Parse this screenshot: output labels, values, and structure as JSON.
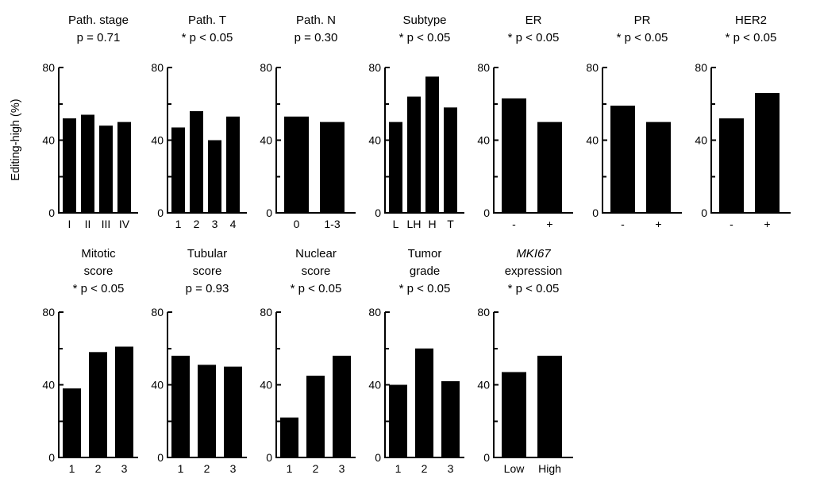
{
  "figure": {
    "ylabel": "Editing-high (%)",
    "background": "#ffffff",
    "bar_color": "#000000",
    "axis_color": "#000000",
    "text_color": "#000000",
    "ylim": [
      0,
      80
    ],
    "yticks_labeled": [
      0,
      40,
      80
    ],
    "yticks_minor": [
      20,
      60
    ]
  },
  "chart_data": [
    {
      "type": "bar",
      "name": "path-stage",
      "row": 1,
      "title_lines": [
        {
          "text": "Path. stage",
          "italic": false
        }
      ],
      "p_label": "p = 0.71",
      "categories": [
        "I",
        "II",
        "III",
        "IV"
      ],
      "values": [
        52,
        54,
        48,
        50
      ],
      "ylabel": "Editing-high (%)",
      "ylim": [
        0,
        80
      ]
    },
    {
      "type": "bar",
      "name": "path-t",
      "row": 1,
      "title_lines": [
        {
          "text": "Path. T",
          "italic": false
        }
      ],
      "p_label": "* p < 0.05",
      "categories": [
        "1",
        "2",
        "3",
        "4"
      ],
      "values": [
        47,
        56,
        40,
        53
      ],
      "ylabel": "Editing-high (%)",
      "ylim": [
        0,
        80
      ]
    },
    {
      "type": "bar",
      "name": "path-n",
      "row": 1,
      "title_lines": [
        {
          "text": "Path. N",
          "italic": false
        }
      ],
      "p_label": "p = 0.30",
      "categories": [
        "0",
        "1-3"
      ],
      "values": [
        53,
        50
      ],
      "ylabel": "Editing-high (%)",
      "ylim": [
        0,
        80
      ]
    },
    {
      "type": "bar",
      "name": "subtype",
      "row": 1,
      "title_lines": [
        {
          "text": "Subtype",
          "italic": false
        }
      ],
      "p_label": "* p < 0.05",
      "categories": [
        "L",
        "LH",
        "H",
        "T"
      ],
      "values": [
        50,
        64,
        75,
        58
      ],
      "ylabel": "Editing-high (%)",
      "ylim": [
        0,
        80
      ]
    },
    {
      "type": "bar",
      "name": "er",
      "row": 1,
      "title_lines": [
        {
          "text": "ER",
          "italic": false
        }
      ],
      "p_label": "* p < 0.05",
      "categories": [
        "-",
        "+"
      ],
      "values": [
        63,
        50
      ],
      "ylabel": "Editing-high (%)",
      "ylim": [
        0,
        80
      ]
    },
    {
      "type": "bar",
      "name": "pr",
      "row": 1,
      "title_lines": [
        {
          "text": "PR",
          "italic": false
        }
      ],
      "p_label": "* p < 0.05",
      "categories": [
        "-",
        "+"
      ],
      "values": [
        59,
        50
      ],
      "ylabel": "Editing-high (%)",
      "ylim": [
        0,
        80
      ]
    },
    {
      "type": "bar",
      "name": "her2",
      "row": 1,
      "title_lines": [
        {
          "text": "HER2",
          "italic": false
        }
      ],
      "p_label": "* p < 0.05",
      "categories": [
        "-",
        "+"
      ],
      "values": [
        52,
        66
      ],
      "ylabel": "Editing-high (%)",
      "ylim": [
        0,
        80
      ]
    },
    {
      "type": "bar",
      "name": "mitotic-score",
      "row": 2,
      "title_lines": [
        {
          "text": "Mitotic",
          "italic": false
        },
        {
          "text": "score",
          "italic": false
        }
      ],
      "p_label": "* p < 0.05",
      "categories": [
        "1",
        "2",
        "3"
      ],
      "values": [
        38,
        58,
        61
      ],
      "ylabel": "Editing-high (%)",
      "ylim": [
        0,
        80
      ]
    },
    {
      "type": "bar",
      "name": "tubular-score",
      "row": 2,
      "title_lines": [
        {
          "text": "Tubular",
          "italic": false
        },
        {
          "text": "score",
          "italic": false
        }
      ],
      "p_label": "p = 0.93",
      "categories": [
        "1",
        "2",
        "3"
      ],
      "values": [
        56,
        51,
        50
      ],
      "ylabel": "Editing-high (%)",
      "ylim": [
        0,
        80
      ]
    },
    {
      "type": "bar",
      "name": "nuclear-score",
      "row": 2,
      "title_lines": [
        {
          "text": "Nuclear",
          "italic": false
        },
        {
          "text": "score",
          "italic": false
        }
      ],
      "p_label": "* p < 0.05",
      "categories": [
        "1",
        "2",
        "3"
      ],
      "values": [
        22,
        45,
        56
      ],
      "ylabel": "Editing-high (%)",
      "ylim": [
        0,
        80
      ]
    },
    {
      "type": "bar",
      "name": "tumor-grade",
      "row": 2,
      "title_lines": [
        {
          "text": "Tumor",
          "italic": false
        },
        {
          "text": "grade",
          "italic": false
        }
      ],
      "p_label": "* p < 0.05",
      "categories": [
        "1",
        "2",
        "3"
      ],
      "values": [
        40,
        60,
        42
      ],
      "ylabel": "Editing-high (%)",
      "ylim": [
        0,
        80
      ]
    },
    {
      "type": "bar",
      "name": "mki67-expression",
      "row": 2,
      "title_lines": [
        {
          "text": "MKI67",
          "italic": true
        },
        {
          "text": "expression",
          "italic": false
        }
      ],
      "p_label": "* p < 0.05",
      "categories": [
        "Low",
        "High"
      ],
      "values": [
        47,
        56
      ],
      "ylabel": "Editing-high (%)",
      "ylim": [
        0,
        80
      ]
    }
  ]
}
